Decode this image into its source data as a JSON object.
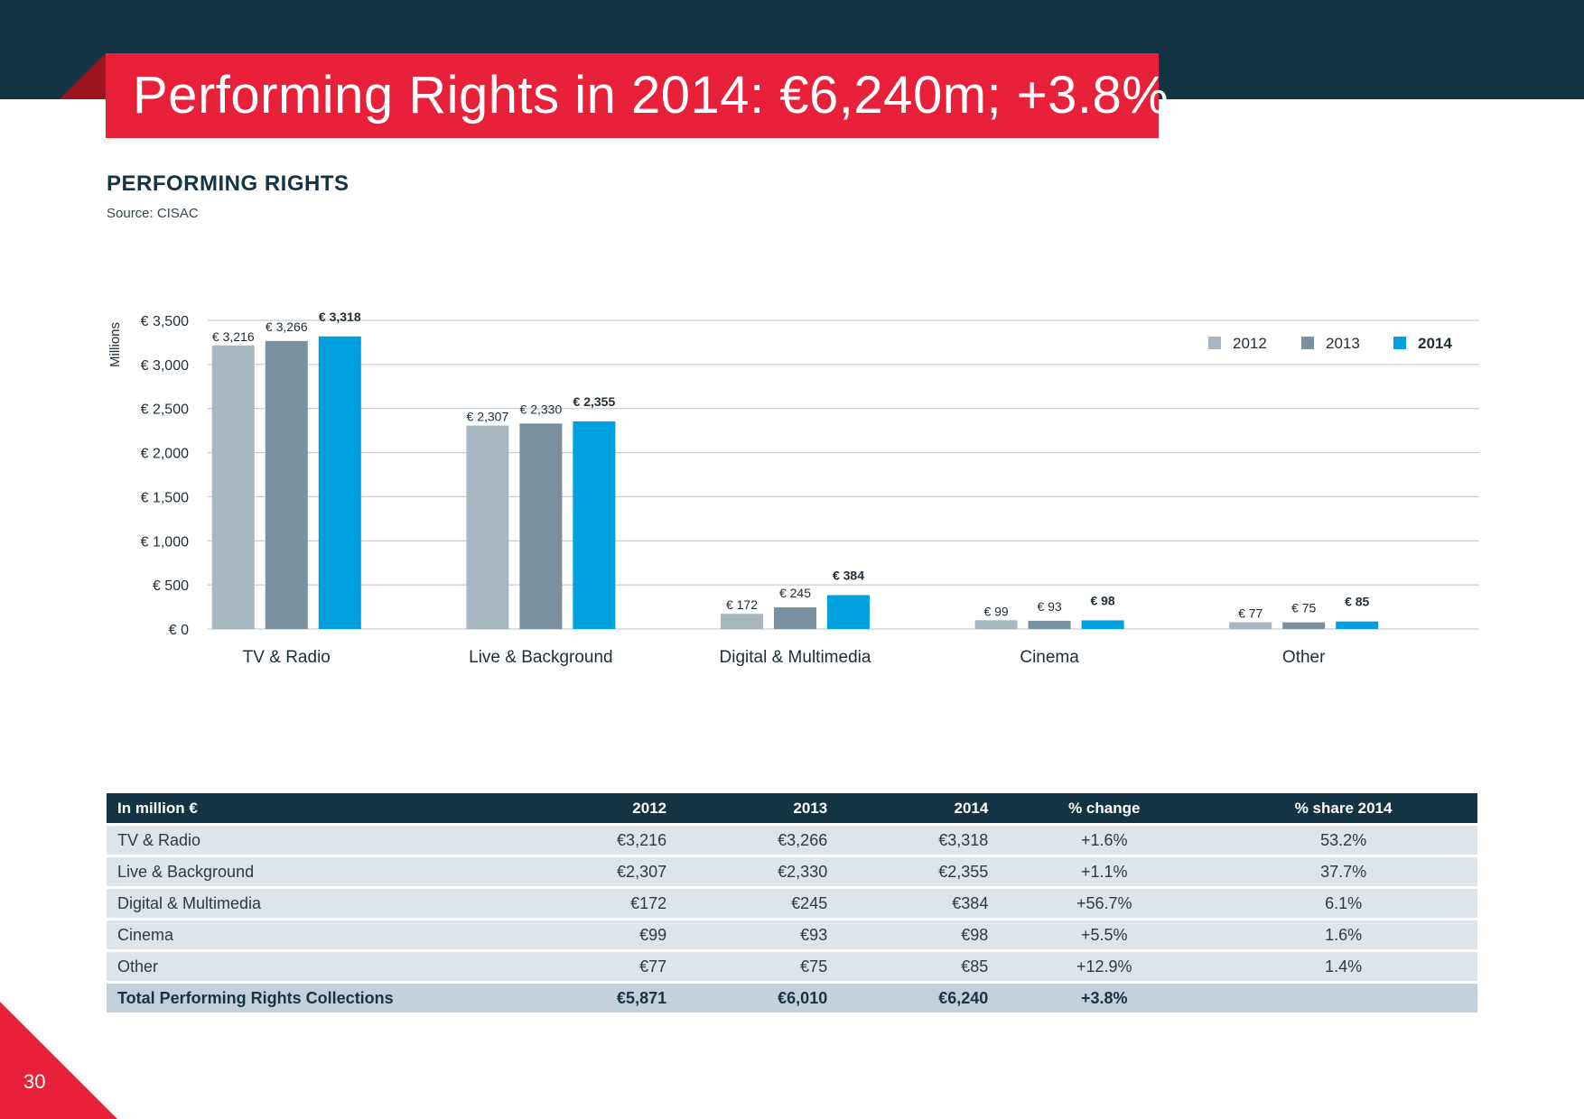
{
  "page": {
    "title": "Performing Rights in 2014: €6,240m; +3.8%",
    "page_number": "30",
    "colors": {
      "band": "#143445",
      "accent": "#e8203a",
      "s2012": "#a8b8c3",
      "s2013": "#7890a0",
      "s2014": "#009fde"
    }
  },
  "section": {
    "title": "PERFORMING RIGHTS",
    "source": "Source: CISAC"
  },
  "chart_data": {
    "type": "bar",
    "title": "PERFORMING RIGHTS",
    "ylabel": "Millions",
    "xlabel": "",
    "ylim": [
      0,
      3500
    ],
    "yticks": [
      0,
      500,
      1000,
      1500,
      2000,
      2500,
      3000,
      3500
    ],
    "ytick_labels": [
      "€ 0",
      "€ 500",
      "€ 1,000",
      "€ 1,500",
      "€ 2,000",
      "€ 2,500",
      "€ 3,000",
      "€ 3,500"
    ],
    "grid": true,
    "legend": "top-right",
    "categories": [
      "TV & Radio",
      "Live & Background",
      "Digital & Multimedia",
      "Cinema",
      "Other"
    ],
    "series": [
      {
        "name": "2012",
        "values": [
          3216,
          2307,
          172,
          99,
          77
        ],
        "labels": [
          "€ 3,216",
          "€ 2,307",
          "€ 172",
          "€ 99",
          "€ 77"
        ]
      },
      {
        "name": "2013",
        "values": [
          3266,
          2330,
          245,
          93,
          75
        ],
        "labels": [
          "€ 3,266",
          "€ 2,330",
          "€ 245",
          "€ 93",
          "€ 75"
        ]
      },
      {
        "name": "2014",
        "values": [
          3318,
          2355,
          384,
          98,
          85
        ],
        "labels": [
          "€ 3,318",
          "€ 2,355",
          "€ 384",
          "€ 98",
          "€ 85"
        ],
        "bold": true
      }
    ]
  },
  "table": {
    "headers": [
      "In million €",
      "2012",
      "2013",
      "2014",
      "% change",
      "% share 2014"
    ],
    "rows": [
      [
        "TV & Radio",
        "€3,216",
        "€3,266",
        "€3,318",
        "+1.6%",
        "53.2%"
      ],
      [
        "Live & Background",
        "€2,307",
        "€2,330",
        "€2,355",
        "+1.1%",
        "37.7%"
      ],
      [
        "Digital & Multimedia",
        "€172",
        "€245",
        "€384",
        "+56.7%",
        "6.1%"
      ],
      [
        "Cinema",
        "€99",
        "€93",
        "€98",
        "+5.5%",
        "1.6%"
      ],
      [
        "Other",
        "€77",
        "€75",
        "€85",
        "+12.9%",
        "1.4%"
      ]
    ],
    "total": [
      "Total Performing Rights Collections",
      "€5,871",
      "€6,010",
      "€6,240",
      "+3.8%",
      ""
    ]
  }
}
